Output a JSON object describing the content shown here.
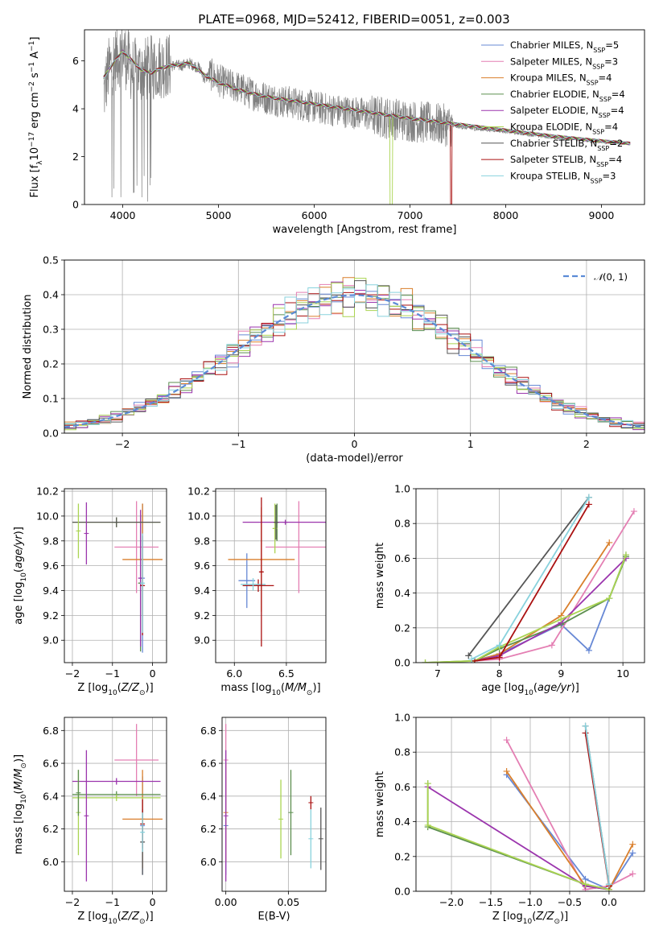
{
  "figure": {
    "title": "PLATE=0968, MJD=52412, FIBERID=0051, z=0.003",
    "legend_labels": [
      "Chabrier MILES, N_SSP=5",
      "Salpeter MILES, N_SSP=3",
      "Kroupa MILES, N_SSP=4",
      "Chabrier ELODIE, N_SSP=4",
      "Salpeter ELODIE, N_SSP=4",
      "Kroupa ELODIE, N_SSP=4",
      "Chabrier STELIB, N_SSP=2",
      "Salpeter STELIB, N_SSP=4",
      "Kroupa STELIB, N_SSP=3"
    ],
    "model_colors": [
      "#6788d5",
      "#e47fb3",
      "#d97f2c",
      "#5c8f4f",
      "#9b35ad",
      "#aad451",
      "#555555",
      "#aa1111",
      "#88d2dd"
    ],
    "data_color": "#808080",
    "normal_legend": "N(0,1)"
  },
  "chart_data": [
    {
      "id": "spectrum",
      "type": "line",
      "xlabel": "wavelength [Angstrom, rest frame]",
      "ylabel": "Flux [f_λ 10^-17 erg cm^-2 s^-1 A^-1]",
      "xlim": [
        3600,
        9450
      ],
      "ylim": [
        0,
        7.3
      ],
      "xticks": [
        4000,
        5000,
        6000,
        7000,
        8000,
        9000
      ],
      "yticks": [
        0,
        2,
        4,
        6
      ],
      "grid": false,
      "legend": "top-right",
      "data_x": [
        3800,
        3850,
        3900,
        3950,
        4000,
        4100,
        4200,
        4300,
        4400,
        4500,
        4600,
        4700,
        4800,
        4860,
        4900,
        5000,
        5100,
        5200,
        5300,
        5500,
        5700,
        5900,
        6100,
        6300,
        6500,
        6700,
        6900,
        7100,
        7300,
        7500,
        7700,
        7900,
        8100,
        8300,
        8500,
        8700,
        8900,
        9100,
        9300
      ],
      "data_y": [
        4.6,
        5.6,
        6.0,
        6.2,
        6.4,
        5.6,
        5.6,
        5.7,
        5.8,
        5.8,
        5.8,
        5.9,
        5.7,
        5.2,
        5.5,
        5.2,
        5.0,
        4.9,
        4.7,
        4.45,
        4.3,
        4.15,
        4.0,
        3.9,
        3.8,
        3.65,
        3.55,
        3.45,
        3.35,
        3.25,
        3.15,
        3.1,
        3.0,
        2.9,
        2.8,
        2.75,
        2.65,
        2.6,
        2.55
      ],
      "model_x": [
        3800,
        3900,
        4000,
        4100,
        4200,
        4300,
        4400,
        4500,
        4700,
        4860,
        4900,
        5000,
        5200,
        5500,
        6000,
        6500,
        7000,
        7500,
        8000,
        8500,
        9000,
        9300
      ],
      "model_y": [
        5.3,
        5.9,
        6.4,
        6.0,
        5.6,
        5.5,
        5.7,
        5.8,
        5.9,
        5.4,
        5.3,
        5.1,
        4.8,
        4.5,
        4.2,
        3.9,
        3.6,
        3.35,
        3.1,
        2.85,
        2.65,
        2.55
      ]
    },
    {
      "id": "residuals",
      "type": "histogram",
      "xlabel": "(data-model)/error",
      "ylabel": "Normed distribution",
      "xlim": [
        -2.5,
        2.5
      ],
      "ylim": [
        0,
        0.5
      ],
      "xticks": [
        -2,
        -1,
        0,
        1,
        2
      ],
      "yticks": [
        0.0,
        0.1,
        0.2,
        0.3,
        0.4,
        0.5
      ],
      "grid": true,
      "legend": "top-right",
      "bin_width": 0.1
    },
    {
      "id": "age_vs_Z",
      "type": "errorbar",
      "xlabel": "Z [log10(Z/Z_sun)]",
      "ylabel": "age [log10(age/yr)]",
      "xlim": [
        -2.2,
        0.35
      ],
      "ylim": [
        8.82,
        10.22
      ],
      "xticks": [
        -2,
        -1,
        0
      ],
      "yticks": [
        9.0,
        9.2,
        9.4,
        9.6,
        9.8,
        10.0,
        10.2
      ],
      "grid": true,
      "points": [
        {
          "m": 0,
          "x": -0.25,
          "xerr": 0.05,
          "y": 9.5,
          "yerr": 0.6
        },
        {
          "m": 1,
          "x": -0.4,
          "xerr": 0.55,
          "y": 9.75,
          "yerr": 0.37
        },
        {
          "m": 2,
          "x": -0.25,
          "xerr": 0.5,
          "y": 9.65,
          "yerr": 0.45
        },
        {
          "m": 3,
          "x": -0.3,
          "xerr": 0.05,
          "y": 9.46,
          "yerr": 0.55
        },
        {
          "m": 4,
          "x": -0.3,
          "xerr": 0.05,
          "y": 9.5,
          "yerr": 0.55
        },
        {
          "m": 5,
          "x": -0.9,
          "xerr": 1.1,
          "y": 9.95,
          "yerr": 0.04
        },
        {
          "m": 6,
          "x": -0.9,
          "xerr": 1.1,
          "y": 9.95,
          "yerr": 0.04
        },
        {
          "m": 7,
          "x": -0.25,
          "xerr": 0.05,
          "y": 9.44,
          "yerr": 0.4
        },
        {
          "m": 8,
          "x": -0.25,
          "xerr": 0.05,
          "y": 9.46,
          "yerr": 0.4
        },
        {
          "m": 5,
          "x": -1.85,
          "xerr": 0.02,
          "y": 9.88,
          "yerr": 0.22
        },
        {
          "m": 4,
          "x": -1.65,
          "xerr": 0.02,
          "y": 9.86,
          "yerr": 0.25
        }
      ]
    },
    {
      "id": "age_vs_mass",
      "type": "errorbar",
      "xlabel": "mass [log10(M/M_sun)]",
      "xlim": [
        5.82,
        6.88
      ],
      "ylim": [
        8.82,
        10.22
      ],
      "xticks": [
        6.0,
        6.5
      ],
      "yticks": [
        9.0,
        9.2,
        9.4,
        9.6,
        9.8,
        10.0,
        10.2
      ],
      "grid": true,
      "points": [
        {
          "m": 0,
          "x": 6.12,
          "xerr": 0.08,
          "y": 9.48,
          "yerr": 0.22
        },
        {
          "m": 1,
          "x": 6.62,
          "xerr": 0.32,
          "y": 9.75,
          "yerr": 0.37
        },
        {
          "m": 2,
          "x": 6.26,
          "xerr": 0.32,
          "y": 9.65,
          "yerr": 0.42
        },
        {
          "m": 3,
          "x": 6.41,
          "xerr": 0.02,
          "y": 9.95,
          "yerr": 0.15
        },
        {
          "m": 4,
          "x": 6.49,
          "xerr": 0.41,
          "y": 9.95,
          "yerr": 0.02
        },
        {
          "m": 5,
          "x": 6.39,
          "xerr": 0.02,
          "y": 9.9,
          "yerr": 0.2
        },
        {
          "m": 6,
          "x": 6.4,
          "xerr": 0.02,
          "y": 9.95,
          "yerr": 0.14
        },
        {
          "m": 7,
          "x": 6.23,
          "xerr": 0.15,
          "y": 9.44,
          "yerr": 0.05
        },
        {
          "m": 8,
          "x": 6.18,
          "xerr": 0.12,
          "y": 9.45,
          "yerr": 0.05
        },
        {
          "m": 7,
          "x": 6.26,
          "xerr": 0.02,
          "y": 9.55,
          "yerr": 0.6
        }
      ]
    },
    {
      "id": "weight_vs_age",
      "type": "line",
      "xlabel": "age [log10(age/yr)]",
      "ylabel": "mass weight",
      "xlim": [
        6.65,
        10.35
      ],
      "ylim": [
        0,
        1.0
      ],
      "xticks": [
        7,
        8,
        9,
        10
      ],
      "yticks": [
        0.0,
        0.2,
        0.4,
        0.6,
        0.8,
        1.0
      ],
      "grid": true,
      "series": [
        {
          "m": 0,
          "x": [
            7.6,
            8.0,
            9.0,
            9.45,
            9.78,
            10.05
          ],
          "y": [
            0.01,
            0.05,
            0.22,
            0.07,
            0.37,
            0.62
          ]
        },
        {
          "m": 1,
          "x": [
            7.6,
            8.0,
            8.85,
            10.18
          ],
          "y": [
            0.01,
            0.02,
            0.1,
            0.87
          ]
        },
        {
          "m": 2,
          "x": [
            7.6,
            8.0,
            9.0,
            9.78
          ],
          "y": [
            0.01,
            0.05,
            0.27,
            0.69
          ]
        },
        {
          "m": 3,
          "x": [
            6.8,
            7.6,
            8.0,
            9.0,
            9.78,
            10.05
          ],
          "y": [
            0.0,
            0.01,
            0.08,
            0.22,
            0.37,
            0.61
          ]
        },
        {
          "m": 4,
          "x": [
            7.6,
            8.0,
            9.0,
            10.05
          ],
          "y": [
            0.01,
            0.04,
            0.23,
            0.6
          ]
        },
        {
          "m": 5,
          "x": [
            6.8,
            7.6,
            8.0,
            9.0,
            9.78,
            10.05
          ],
          "y": [
            0.0,
            0.01,
            0.09,
            0.25,
            0.37,
            0.62
          ]
        },
        {
          "m": 6,
          "x": [
            7.5,
            9.45
          ],
          "y": [
            0.04,
            0.95
          ]
        },
        {
          "m": 7,
          "x": [
            7.6,
            8.0,
            9.45
          ],
          "y": [
            0.01,
            0.03,
            0.91
          ]
        },
        {
          "m": 8,
          "x": [
            7.55,
            8.0,
            9.45
          ],
          "y": [
            0.02,
            0.1,
            0.95
          ]
        }
      ]
    },
    {
      "id": "mass_vs_Z",
      "type": "errorbar",
      "xlabel": "Z [log10(Z/Z_sun)]",
      "ylabel": "mass [log10(M/M_sun)]",
      "xlim": [
        -2.2,
        0.35
      ],
      "ylim": [
        5.82,
        6.88
      ],
      "xticks": [
        -2,
        -1,
        0
      ],
      "yticks": [
        6.0,
        6.2,
        6.4,
        6.6,
        6.8
      ],
      "grid": true,
      "points": [
        {
          "m": 0,
          "x": -0.25,
          "xerr": 0.05,
          "y": 6.22,
          "yerr": 0.3
        },
        {
          "m": 1,
          "x": -0.4,
          "xerr": 0.55,
          "y": 6.62,
          "yerr": 0.22
        },
        {
          "m": 2,
          "x": -0.25,
          "xerr": 0.5,
          "y": 6.26,
          "yerr": 0.3
        },
        {
          "m": 3,
          "x": -0.9,
          "xerr": 1.1,
          "y": 6.41,
          "yerr": 0.02
        },
        {
          "m": 4,
          "x": -0.9,
          "xerr": 1.1,
          "y": 6.49,
          "yerr": 0.02
        },
        {
          "m": 5,
          "x": -0.9,
          "xerr": 1.1,
          "y": 6.39,
          "yerr": 0.02
        },
        {
          "m": 6,
          "x": -0.25,
          "xerr": 0.05,
          "y": 6.12,
          "yerr": 0.2
        },
        {
          "m": 7,
          "x": -0.25,
          "xerr": 0.05,
          "y": 6.23,
          "yerr": 0.15
        },
        {
          "m": 8,
          "x": -0.25,
          "xerr": 0.05,
          "y": 6.18,
          "yerr": 0.12
        },
        {
          "m": 5,
          "x": -1.85,
          "xerr": 0.02,
          "y": 6.3,
          "yerr": 0.26
        },
        {
          "m": 4,
          "x": -1.65,
          "xerr": 0.02,
          "y": 6.28,
          "yerr": 0.4
        },
        {
          "m": 3,
          "x": -1.85,
          "xerr": 0.02,
          "y": 6.42,
          "yerr": 0.14
        }
      ]
    },
    {
      "id": "mass_vs_ebv",
      "type": "errorbar",
      "xlabel": "E(B-V)",
      "xlim": [
        -0.003,
        0.08
      ],
      "ylim": [
        5.82,
        6.88
      ],
      "xticks": [
        0.0,
        0.05
      ],
      "yticks": [
        6.0,
        6.2,
        6.4,
        6.6,
        6.8
      ],
      "grid": true,
      "points": [
        {
          "m": 0,
          "x": 0.0,
          "xerr": 0,
          "y": 6.22,
          "yerr": 0.3
        },
        {
          "m": 1,
          "x": 0.0,
          "xerr": 0,
          "y": 6.62,
          "yerr": 0.22
        },
        {
          "m": 2,
          "x": 0.0,
          "xerr": 0,
          "y": 6.3,
          "yerr": 0.3
        },
        {
          "m": 4,
          "x": 0.0,
          "xerr": 0,
          "y": 6.28,
          "yerr": 0.4
        },
        {
          "m": 5,
          "x": 0.044,
          "xerr": 0,
          "y": 6.26,
          "yerr": 0.24
        },
        {
          "m": 3,
          "x": 0.052,
          "xerr": 0,
          "y": 6.3,
          "yerr": 0.26
        },
        {
          "m": 8,
          "x": 0.068,
          "xerr": 0,
          "y": 6.14,
          "yerr": 0.18
        },
        {
          "m": 7,
          "x": 0.068,
          "xerr": 0,
          "y": 6.36,
          "yerr": 0.04
        },
        {
          "m": 6,
          "x": 0.076,
          "xerr": 0,
          "y": 6.14,
          "yerr": 0.19
        }
      ]
    },
    {
      "id": "weight_vs_Z",
      "type": "line",
      "xlabel": "Z [log10(Z/Z_sun)]",
      "ylabel": "mass weight",
      "xlim": [
        -2.45,
        0.45
      ],
      "ylim": [
        0,
        1.0
      ],
      "xticks": [
        -2.0,
        -1.5,
        -1.0,
        -0.5,
        0.0
      ],
      "yticks": [
        0.0,
        0.2,
        0.4,
        0.6,
        0.8,
        1.0
      ],
      "grid": true,
      "series": [
        {
          "m": 0,
          "x": [
            -1.3,
            -0.3,
            0.0,
            0.3
          ],
          "y": [
            0.67,
            0.07,
            0.01,
            0.22
          ]
        },
        {
          "m": 1,
          "x": [
            -1.3,
            -0.3,
            0.0,
            0.3
          ],
          "y": [
            0.87,
            0.01,
            0.03,
            0.1
          ]
        },
        {
          "m": 2,
          "x": [
            -1.3,
            -0.3,
            0.0,
            0.3
          ],
          "y": [
            0.69,
            0.03,
            0.01,
            0.27
          ]
        },
        {
          "m": 3,
          "x": [
            -2.3,
            -2.3,
            -0.3,
            0.0
          ],
          "y": [
            0.62,
            0.37,
            0.04,
            0.01
          ]
        },
        {
          "m": 4,
          "x": [
            -2.3,
            -0.3,
            0.0
          ],
          "y": [
            0.6,
            0.03,
            0.01
          ]
        },
        {
          "m": 5,
          "x": [
            -2.3,
            -2.3,
            -0.3,
            0.0
          ],
          "y": [
            0.62,
            0.38,
            0.04,
            0.01
          ]
        },
        {
          "m": 6,
          "x": [
            -0.3,
            0.0
          ],
          "y": [
            0.95,
            0.04
          ]
        },
        {
          "m": 7,
          "x": [
            -0.3,
            0.0
          ],
          "y": [
            0.91,
            0.03
          ]
        },
        {
          "m": 8,
          "x": [
            -0.3,
            0.0
          ],
          "y": [
            0.95,
            0.04
          ]
        }
      ]
    }
  ]
}
